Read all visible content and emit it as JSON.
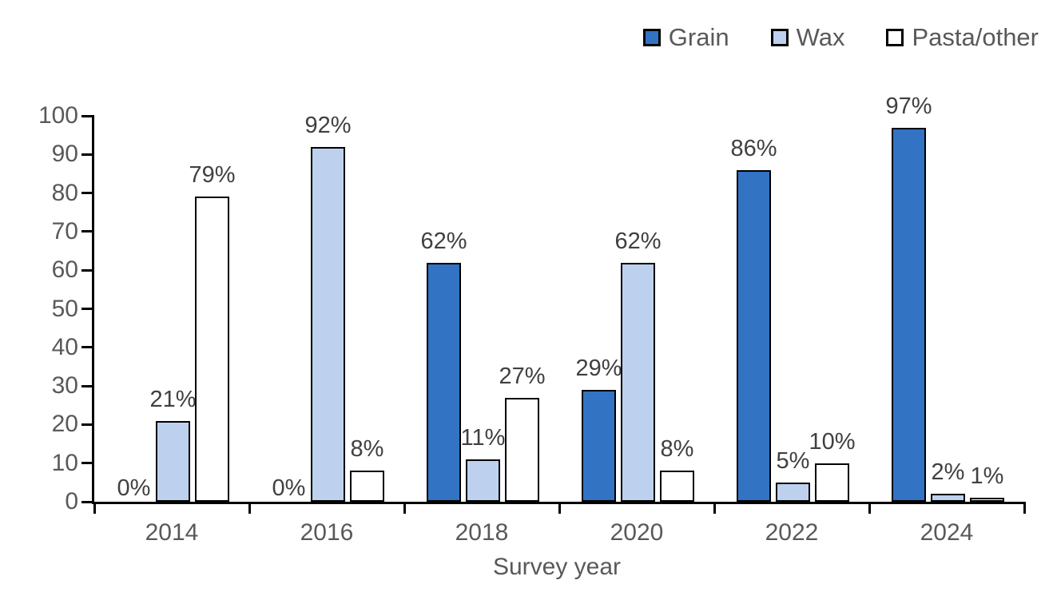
{
  "colors": {
    "grain_fill": "#3273C4",
    "wax_fill": "#BDD1EE",
    "pasta_fill": "#FFFFFF",
    "bar_border": "#000000",
    "axis_line": "#000000",
    "axis_text": "#595959",
    "data_label_text": "#404040"
  },
  "legend": {
    "items": [
      {
        "label": "Grain",
        "color": "#3273C4"
      },
      {
        "label": "Wax",
        "color": "#BDD1EE"
      },
      {
        "label": "Pasta/other",
        "color": "#FFFFFF"
      }
    ]
  },
  "chart_data": {
    "type": "bar",
    "categories": [
      "2014",
      "2016",
      "2018",
      "2020",
      "2022",
      "2024"
    ],
    "series": [
      {
        "name": "Grain",
        "color": "#3273C4",
        "values": [
          0,
          0,
          62,
          29,
          86,
          97
        ],
        "labels": [
          "0%",
          "0%",
          "62%",
          "29%",
          "86%",
          "97%"
        ]
      },
      {
        "name": "Wax",
        "color": "#BDD1EE",
        "values": [
          21,
          92,
          11,
          62,
          5,
          2
        ],
        "labels": [
          "21%",
          "92%",
          "11%",
          "62%",
          "5%",
          "2%"
        ]
      },
      {
        "name": "Pasta/other",
        "color": "#FFFFFF",
        "values": [
          79,
          8,
          27,
          8,
          10,
          1
        ],
        "labels": [
          "79%",
          "8%",
          "27%",
          "8%",
          "10%",
          "1%"
        ]
      }
    ],
    "title": "",
    "xlabel": "Survey year",
    "ylabel": "",
    "ylim": [
      0,
      100
    ],
    "yticks": [
      0,
      10,
      20,
      30,
      40,
      50,
      60,
      70,
      80,
      90,
      100
    ],
    "grid": false,
    "legend_position": "top-right",
    "data_labels": true
  }
}
